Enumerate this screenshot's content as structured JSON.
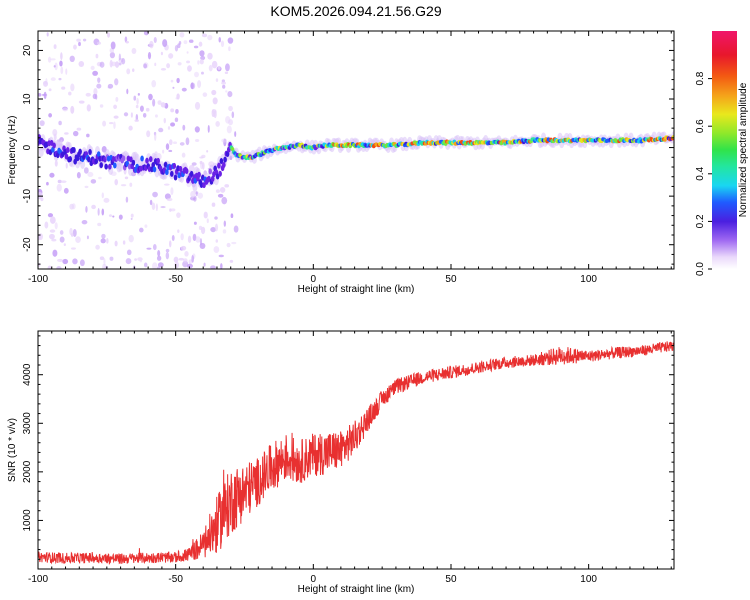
{
  "page_title": "KOM5.2026.094.21.56.G29",
  "chart_data": [
    {
      "type": "heatmap",
      "title": "KOM5.2026.094.21.56.G29",
      "xlabel": "Height of straight line (km)",
      "ylabel": "Frequency (Hz)",
      "xlim": [
        -100,
        131
      ],
      "ylim": [
        -25,
        24
      ],
      "xticks": [
        -100,
        -50,
        0,
        50,
        100
      ],
      "yticks": [
        -20,
        -10,
        0,
        10,
        20
      ],
      "ridge": {
        "x": [
          -100,
          -95,
          -90,
          -85,
          -80,
          -75,
          -70,
          -65,
          -60,
          -55,
          -50,
          -45,
          -40,
          -35,
          -32,
          -30,
          -28,
          -25,
          -22,
          -20,
          -15,
          -10,
          -5,
          0,
          5,
          10,
          20,
          30,
          40,
          50,
          60,
          70,
          80,
          90,
          100,
          110,
          120,
          131
        ],
        "freq": [
          1,
          0,
          -1,
          -2,
          -2,
          -3,
          -3,
          -3.5,
          -3.5,
          -4,
          -5,
          -6,
          -7,
          -5,
          -3,
          0,
          -1.5,
          -2,
          -2,
          -1.5,
          -0.5,
          0,
          0.5,
          0,
          0.5,
          0.5,
          0.5,
          0.5,
          1,
          1,
          1,
          1,
          1.5,
          1.5,
          1.5,
          1.5,
          1.5,
          2
        ]
      },
      "colorbar": {
        "label": "Normalized spectral amplitude",
        "ticks": [
          "0.0",
          "0.2",
          "0.4",
          "0.6",
          "0.8"
        ],
        "range": [
          0,
          1
        ]
      }
    },
    {
      "type": "line",
      "xlabel": "Height of straight line (km)",
      "ylabel": "SNR (10 * v/v)",
      "xlim": [
        -100,
        131
      ],
      "ylim": [
        0,
        4900
      ],
      "xticks": [
        -100,
        -50,
        0,
        50,
        100
      ],
      "yticks": [
        1000,
        2000,
        3000,
        4000
      ],
      "color": "#e83030",
      "series": [
        {
          "name": "SNR",
          "x": [
            -100,
            -90,
            -80,
            -70,
            -60,
            -50,
            -45,
            -40,
            -35,
            -30,
            -25,
            -20,
            -15,
            -10,
            -5,
            0,
            5,
            10,
            15,
            20,
            25,
            30,
            40,
            50,
            60,
            70,
            80,
            90,
            100,
            110,
            120,
            131
          ],
          "y": [
            250,
            220,
            230,
            210,
            230,
            240,
            300,
            500,
            900,
            1400,
            1600,
            1800,
            2100,
            2300,
            2200,
            2350,
            2400,
            2450,
            2700,
            3100,
            3500,
            3750,
            3950,
            4050,
            4150,
            4250,
            4300,
            4400,
            4380,
            4450,
            4500,
            4600
          ],
          "noise": [
            110,
            110,
            110,
            110,
            110,
            110,
            140,
            300,
            600,
            700,
            600,
            500,
            500,
            500,
            450,
            450,
            450,
            400,
            350,
            250,
            180,
            160,
            140,
            130,
            120,
            120,
            120,
            200,
            120,
            120,
            110,
            110
          ]
        }
      ]
    }
  ]
}
